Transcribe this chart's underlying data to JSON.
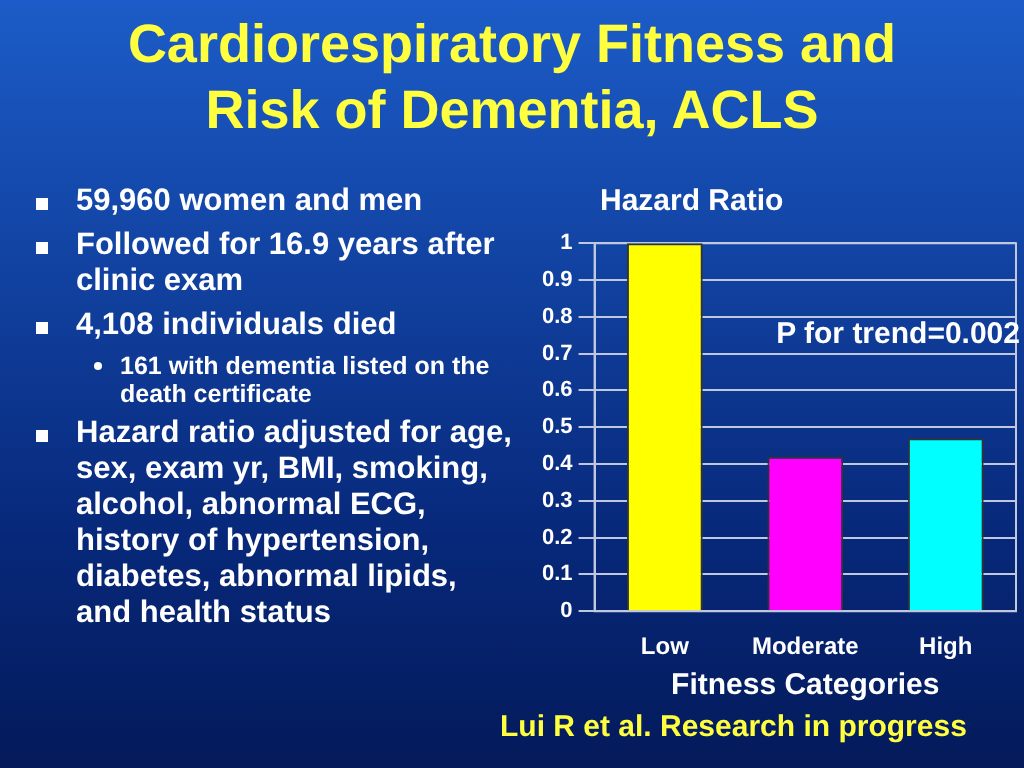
{
  "chart_data": {
    "type": "bar",
    "title": "Cardiorespiratory Fitness and Risk of Dementia, ACLS",
    "ylabel": "Hazard Ratio",
    "xlabel": "Fitness Categories",
    "categories": [
      "Low",
      "Moderate",
      "High"
    ],
    "values": [
      1.0,
      0.42,
      0.47
    ],
    "colors": [
      "#ffff00",
      "#ff00ff",
      "#00ffff"
    ],
    "ylim": [
      0,
      1
    ],
    "yticks": [
      0,
      0.1,
      0.2,
      0.3,
      0.4,
      0.5,
      0.6,
      0.7,
      0.8,
      0.9,
      1
    ],
    "grid": "y",
    "annotations": [
      "59,960 women and men",
      "Followed for 16.9 years after clinic exam",
      "4,108 individuals died",
      "161 with dementia listed on the death certificate",
      "Hazard ratio adjusted for age, sex, exam yr, BMI, smoking, alcohol, abnormal ECG, history of hypertension, diabetes, abnormal lipids, and health status",
      "P for trend=0.002",
      "Lui R et al. Research in progress"
    ]
  }
}
